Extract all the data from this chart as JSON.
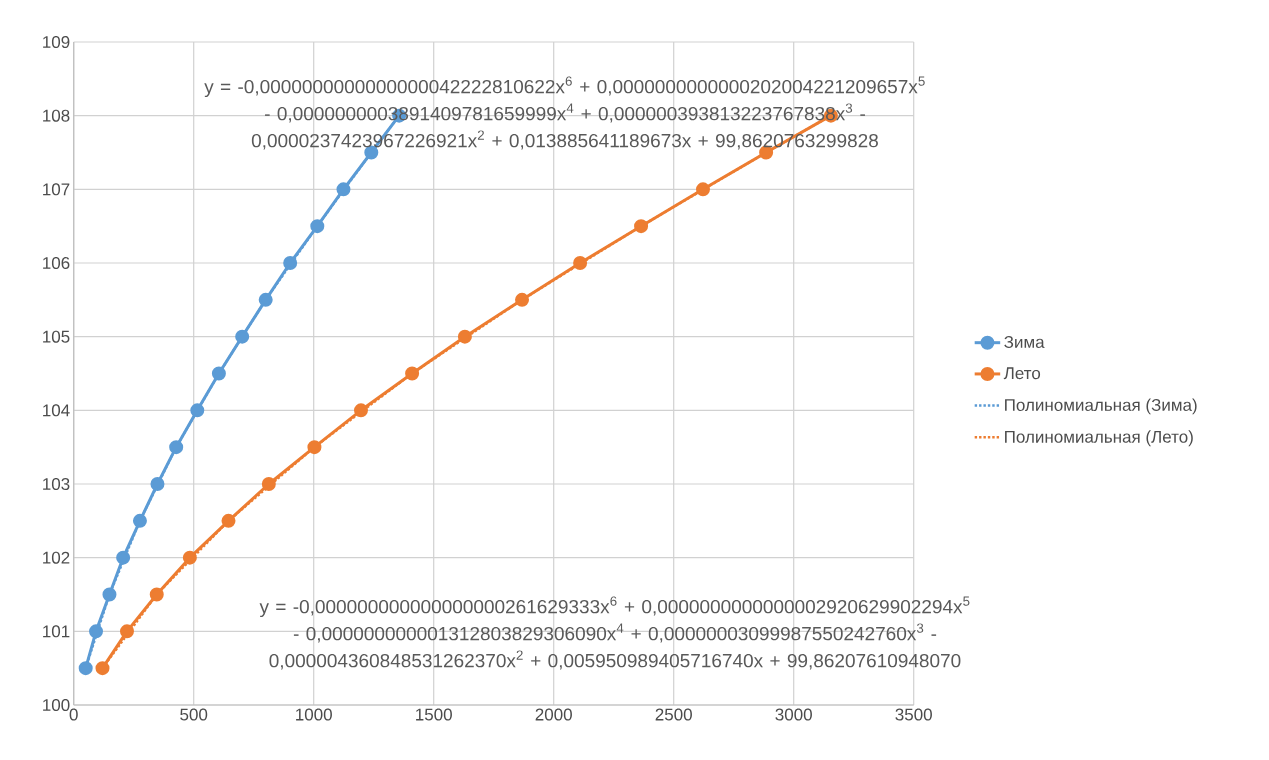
{
  "chart_data": {
    "type": "line",
    "xlim": [
      0,
      3500
    ],
    "ylim": [
      100,
      109
    ],
    "xticks": [
      0,
      500,
      1000,
      1500,
      2000,
      2500,
      3000,
      3500
    ],
    "yticks": [
      100,
      101,
      102,
      103,
      104,
      105,
      106,
      107,
      108,
      109
    ],
    "grid": true,
    "legend": "right",
    "series": [
      {
        "name": "Зима",
        "color": "#5b9bd5",
        "marker": "circle",
        "line_style": "solid",
        "x": [
          50,
          93,
          149,
          206,
          276,
          349,
          427,
          515,
          605,
          702,
          800,
          902,
          1015,
          1124,
          1240,
          1356
        ],
        "values": [
          100.5,
          101,
          101.5,
          102,
          102.5,
          103,
          103.5,
          104,
          104.5,
          105,
          105.5,
          106,
          106.5,
          107,
          107.5,
          108
        ]
      },
      {
        "name": "Лето",
        "color": "#ed7d31",
        "marker": "circle",
        "line_style": "solid",
        "x": [
          120,
          222,
          346,
          484,
          645,
          813,
          1003,
          1197,
          1410,
          1630,
          1868,
          2110,
          2364,
          2622,
          2885,
          3155
        ],
        "values": [
          100.5,
          101,
          101.5,
          102,
          102.5,
          103,
          103.5,
          104,
          104.5,
          105,
          105.5,
          106,
          106.5,
          107,
          107.5,
          108
        ]
      },
      {
        "name": "Полиномиальная (Зима)",
        "type": "line",
        "color": "#5b9bd5",
        "marker": "none",
        "line_style": "dotted",
        "x": [
          50,
          149,
          276,
          427,
          605,
          800,
          1015,
          1240,
          1356
        ],
        "values": [
          100.5,
          101.5,
          102.5,
          103.5,
          104.5,
          105.5,
          106.5,
          107.5,
          108
        ]
      },
      {
        "name": "Полиномиальная (Лето)",
        "type": "line",
        "color": "#ed7d31",
        "marker": "none",
        "line_style": "dotted",
        "x": [
          120,
          346,
          645,
          1003,
          1410,
          1868,
          2364,
          2885,
          3155
        ],
        "values": [
          100.5,
          101.5,
          102.5,
          103.5,
          104.5,
          105.5,
          106.5,
          107.5,
          108
        ]
      }
    ],
    "annotations": [
      "y = -0,0000000000000000042222810622x$^{6}$ + 0,0000000000000202004221209657x$^{5}$ - 0,0000000003891409781659999x$^{4}$ + 0,000000393813223767838x$^{3}$ - 0,0000237423967226921x$^{2}$ + 0,013885641189673x + 99,8620763299828",
      "y = -0,000000000000000000261629333x$^{6}$ + 0,0000000000000002920629902294x$^{5}$ - 0,000000000001312803829306090x$^{4}$ + 0,00000003099987550242760x$^{3}$ - 0,000004360848531262370x$^{2}$ + 0,005950989405716740x + 99,86207610948070"
    ]
  }
}
